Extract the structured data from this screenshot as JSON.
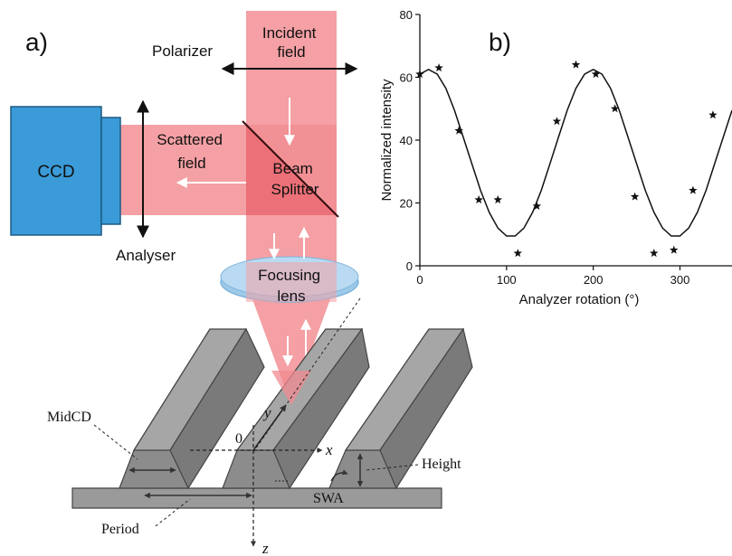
{
  "panel_a": {
    "label": "a)",
    "incident_field": [
      "Incident",
      "field"
    ],
    "polarizer": "Polarizer",
    "scattered_field": [
      "Scattered",
      "field"
    ],
    "beam_splitter": [
      "Beam",
      "Splitter"
    ],
    "ccd": "CCD",
    "analyser": "Analyser",
    "focusing_lens": [
      "Focusing",
      "lens"
    ],
    "midcd": "MidCD",
    "height": "Height",
    "swa": "SWA",
    "period": "Period",
    "origin": "0",
    "axis_x": "x",
    "axis_y": "y",
    "axis_z": "z"
  },
  "panel_b": {
    "label": "b)"
  },
  "colors": {
    "beam": "#f4a0a4",
    "beam_dark": "#e8545c",
    "ccd_blue": "#3a9bd8",
    "lens_blue": "#9ec9e8",
    "grating_gray": "#9a9a9a"
  },
  "chart_data": {
    "type": "scatter",
    "xlabel": "Analyzer rotation (°)",
    "ylabel": "Normalized intensity",
    "xlim": [
      0,
      360
    ],
    "ylim": [
      0,
      80
    ],
    "xticks": [
      0,
      100,
      200,
      300
    ],
    "yticks": [
      0,
      20,
      40,
      60,
      80
    ],
    "series": [
      {
        "kind": "points",
        "marker": "star",
        "x": [
          0,
          22,
          45,
          68,
          90,
          113,
          135,
          158,
          180,
          203,
          225,
          248,
          270,
          293,
          315,
          338
        ],
        "y": [
          61,
          63,
          43,
          21,
          21,
          4,
          19,
          46,
          64,
          61,
          50,
          22,
          4,
          5,
          24,
          48
        ]
      },
      {
        "kind": "fit-curve",
        "x": [
          0,
          10,
          20,
          30,
          40,
          50,
          60,
          70,
          80,
          90,
          100,
          110,
          120,
          130,
          140,
          150,
          160,
          170,
          180,
          190,
          200,
          210,
          220,
          230,
          240,
          250,
          260,
          270,
          280,
          290,
          300,
          310,
          320,
          330,
          340,
          350,
          360
        ],
        "y": [
          61,
          62.5,
          61,
          56.5,
          49.5,
          41,
          32.5,
          24,
          17,
          12,
          9.5,
          9.5,
          12,
          17,
          24,
          32.5,
          41,
          49.5,
          56.5,
          61,
          62.5,
          61,
          56.5,
          49.5,
          41,
          32.5,
          24,
          17,
          12,
          9.5,
          9.5,
          12,
          17,
          24,
          32.5,
          41,
          49.5
        ]
      }
    ]
  }
}
